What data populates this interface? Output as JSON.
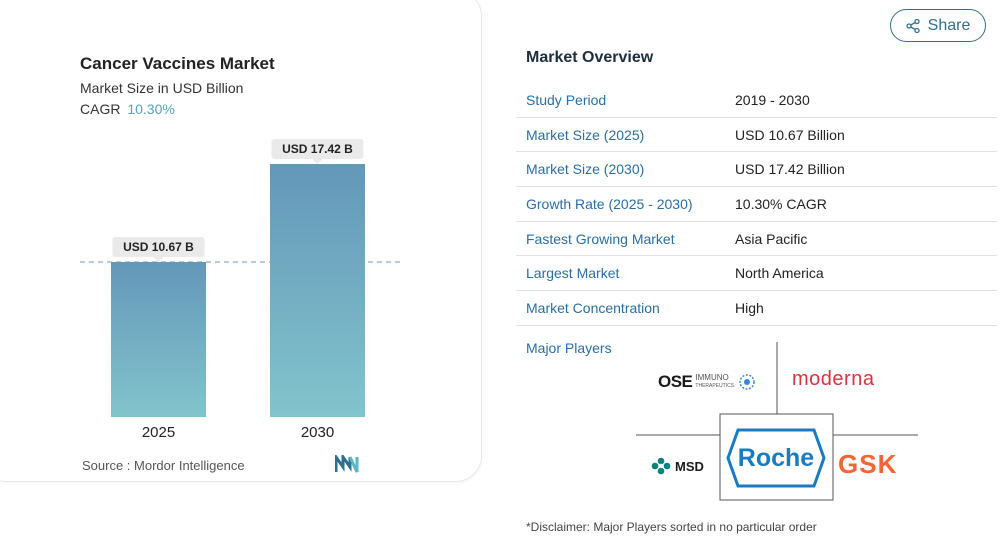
{
  "chart_data": {
    "type": "bar",
    "title": "Cancer Vaccines Market",
    "subtitle": "Market Size in USD Billion",
    "cagr_label": "CAGR",
    "cagr_value": "10.30%",
    "categories": [
      "2025",
      "2030"
    ],
    "values": [
      10.67,
      17.42
    ],
    "data_labels": [
      "USD 10.67 B",
      "USD 17.42 B"
    ],
    "ylim": [
      0,
      20
    ],
    "grid": false,
    "colors": {
      "bar_top": "#6497b9",
      "bar_bottom": "#82c4cc",
      "label_bg": "#eaeaea",
      "ref_line": "#6a9ab8"
    }
  },
  "source": {
    "label": "Source :",
    "value": "Mordor Intelligence"
  },
  "share": {
    "label": "Share"
  },
  "overview": {
    "title": "Market Overview",
    "rows": [
      {
        "key": "Study Period",
        "value": "2019 - 2030"
      },
      {
        "key": "Market Size (2025)",
        "value": "USD 10.67 Billion"
      },
      {
        "key": "Market Size (2030)",
        "value": "USD 17.42 Billion"
      },
      {
        "key": "Growth Rate (2025 - 2030)",
        "value": "10.30% CAGR"
      },
      {
        "key": "Fastest Growing Market",
        "value": "Asia Pacific"
      },
      {
        "key": "Largest Market",
        "value": "North America"
      },
      {
        "key": "Market Concentration",
        "value": "High"
      }
    ]
  },
  "players": {
    "label": "Major Players",
    "logos": {
      "ose": {
        "main": "OSE",
        "sub1": "IMMUNO",
        "sub2": "THERAPEUTICS"
      },
      "moderna": "moderna",
      "roche": "Roche",
      "msd": "MSD",
      "gsk": "GSK"
    }
  },
  "disclaimer": "*Disclaimer: Major Players sorted in no particular order"
}
